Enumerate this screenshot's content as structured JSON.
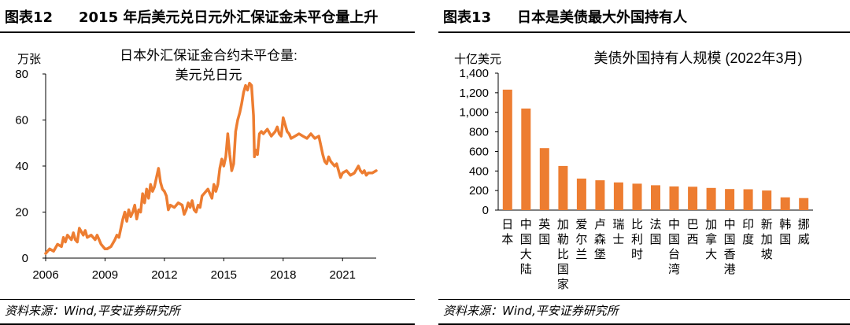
{
  "left": {
    "label": "图表12",
    "title": "2015 年后美元兑日元外汇保证金未平仓量上升",
    "source": "资料来源：Wind,平安证券研究所",
    "chart_data": {
      "type": "line",
      "title_line1": "日本外汇保证金合约未平仓量:",
      "title_line2": "美元兑日元",
      "ylabel": "万张",
      "ylim": [
        0,
        80
      ],
      "yticks": [
        "0",
        "20",
        "40",
        "60",
        "80"
      ],
      "xlim": [
        2006,
        2022.7
      ],
      "xticks": [
        "2006",
        "2009",
        "2012",
        "2015",
        "2018",
        "2021"
      ],
      "color": "#ED7D31",
      "series": [
        {
          "x": [
            2006.0,
            2006.2,
            2006.4,
            2006.6,
            2006.8,
            2006.9,
            2007.0,
            2007.1,
            2007.3,
            2007.4,
            2007.5,
            2007.6,
            2007.7,
            2007.9,
            2008.0,
            2008.1,
            2008.3,
            2008.5,
            2008.6,
            2008.7,
            2008.8,
            2008.9,
            2009.0,
            2009.1,
            2009.3,
            2009.5,
            2009.6,
            2009.7,
            2009.8,
            2009.9,
            2010.0,
            2010.1,
            2010.2,
            2010.3,
            2010.4,
            2010.5,
            2010.6,
            2010.7,
            2010.8,
            2010.9,
            2011.0,
            2011.1,
            2011.2,
            2011.3,
            2011.4,
            2011.5,
            2011.6,
            2011.7,
            2011.8,
            2011.9,
            2012.0,
            2012.1,
            2012.2,
            2012.3,
            2012.5,
            2012.7,
            2012.9,
            2013.0,
            2013.1,
            2013.2,
            2013.3,
            2013.4,
            2013.5,
            2013.6,
            2013.7,
            2013.8,
            2013.9,
            2014.0,
            2014.2,
            2014.4,
            2014.5,
            2014.6,
            2014.7,
            2014.8,
            2014.9,
            2015.0,
            2015.1,
            2015.2,
            2015.3,
            2015.4,
            2015.5,
            2015.6,
            2015.7,
            2015.8,
            2015.9,
            2016.0,
            2016.1,
            2016.2,
            2016.3,
            2016.4,
            2016.5,
            2016.55,
            2016.6,
            2016.7,
            2016.8,
            2016.9,
            2017.0,
            2017.2,
            2017.4,
            2017.6,
            2017.7,
            2017.8,
            2017.9,
            2018.0,
            2018.2,
            2018.3,
            2018.4,
            2018.6,
            2018.8,
            2019.0,
            2019.2,
            2019.4,
            2019.6,
            2019.8,
            2020.0,
            2020.1,
            2020.2,
            2020.3,
            2020.4,
            2020.5,
            2020.6,
            2020.7,
            2020.8,
            2020.9,
            2021.0,
            2021.2,
            2021.4,
            2021.6,
            2021.8,
            2021.9,
            2022.0,
            2022.1,
            2022.2,
            2022.3,
            2022.5,
            2022.7
          ],
          "y": [
            2,
            4,
            3,
            6,
            5,
            9,
            7,
            10,
            8,
            11,
            8,
            7,
            13,
            10,
            12,
            9,
            10,
            8,
            10,
            8,
            6,
            5,
            4,
            4,
            5,
            8,
            10,
            9,
            13,
            17,
            20,
            16,
            21,
            18,
            20,
            23,
            17,
            21,
            20,
            28,
            24,
            30,
            26,
            32,
            29,
            31,
            35,
            39,
            33,
            30,
            29,
            27,
            21,
            23,
            22,
            24,
            23,
            19,
            21,
            24,
            22,
            25,
            21,
            20,
            23,
            22,
            27,
            28,
            30,
            26,
            32,
            29,
            32,
            39,
            43,
            40,
            44,
            54,
            45,
            38,
            41,
            55,
            60,
            63,
            67,
            72,
            75,
            73,
            76,
            75,
            62,
            44,
            47,
            45,
            54,
            55,
            54,
            56,
            53,
            55,
            57,
            54,
            53,
            61,
            55,
            54,
            52,
            53,
            54,
            53,
            52,
            54,
            52,
            53,
            45,
            42,
            41,
            44,
            42,
            41,
            40,
            41,
            38,
            35,
            37,
            38,
            36,
            37,
            40,
            38,
            37,
            38,
            36,
            37,
            37,
            38
          ]
        }
      ]
    }
  },
  "right": {
    "label": "图表13",
    "title": "日本是美债最大外国持有人",
    "source": "资料来源：Wind,平安证券研究所",
    "chart_data": {
      "type": "bar",
      "title": "美债外国持有人规模 (2022年3月)",
      "ylabel": "十亿美元",
      "ylim": [
        0,
        1400
      ],
      "yticks": [
        "0",
        "200",
        "400",
        "600",
        "800",
        "1,000",
        "1,200",
        "1,400"
      ],
      "color": "#ED7D31",
      "categories": [
        "日本",
        "中国大陆",
        "英国",
        "加勒比国家",
        "爱尔兰",
        "卢森堡",
        "瑞士",
        "比利时",
        "法国",
        "中国台湾",
        "巴西",
        "加拿大",
        "中国香港",
        "印度",
        "新加坡",
        "韩国",
        "挪威"
      ],
      "values": [
        1232,
        1039,
        634,
        451,
        323,
        305,
        283,
        270,
        254,
        242,
        239,
        227,
        216,
        213,
        200,
        130,
        123
      ]
    }
  }
}
